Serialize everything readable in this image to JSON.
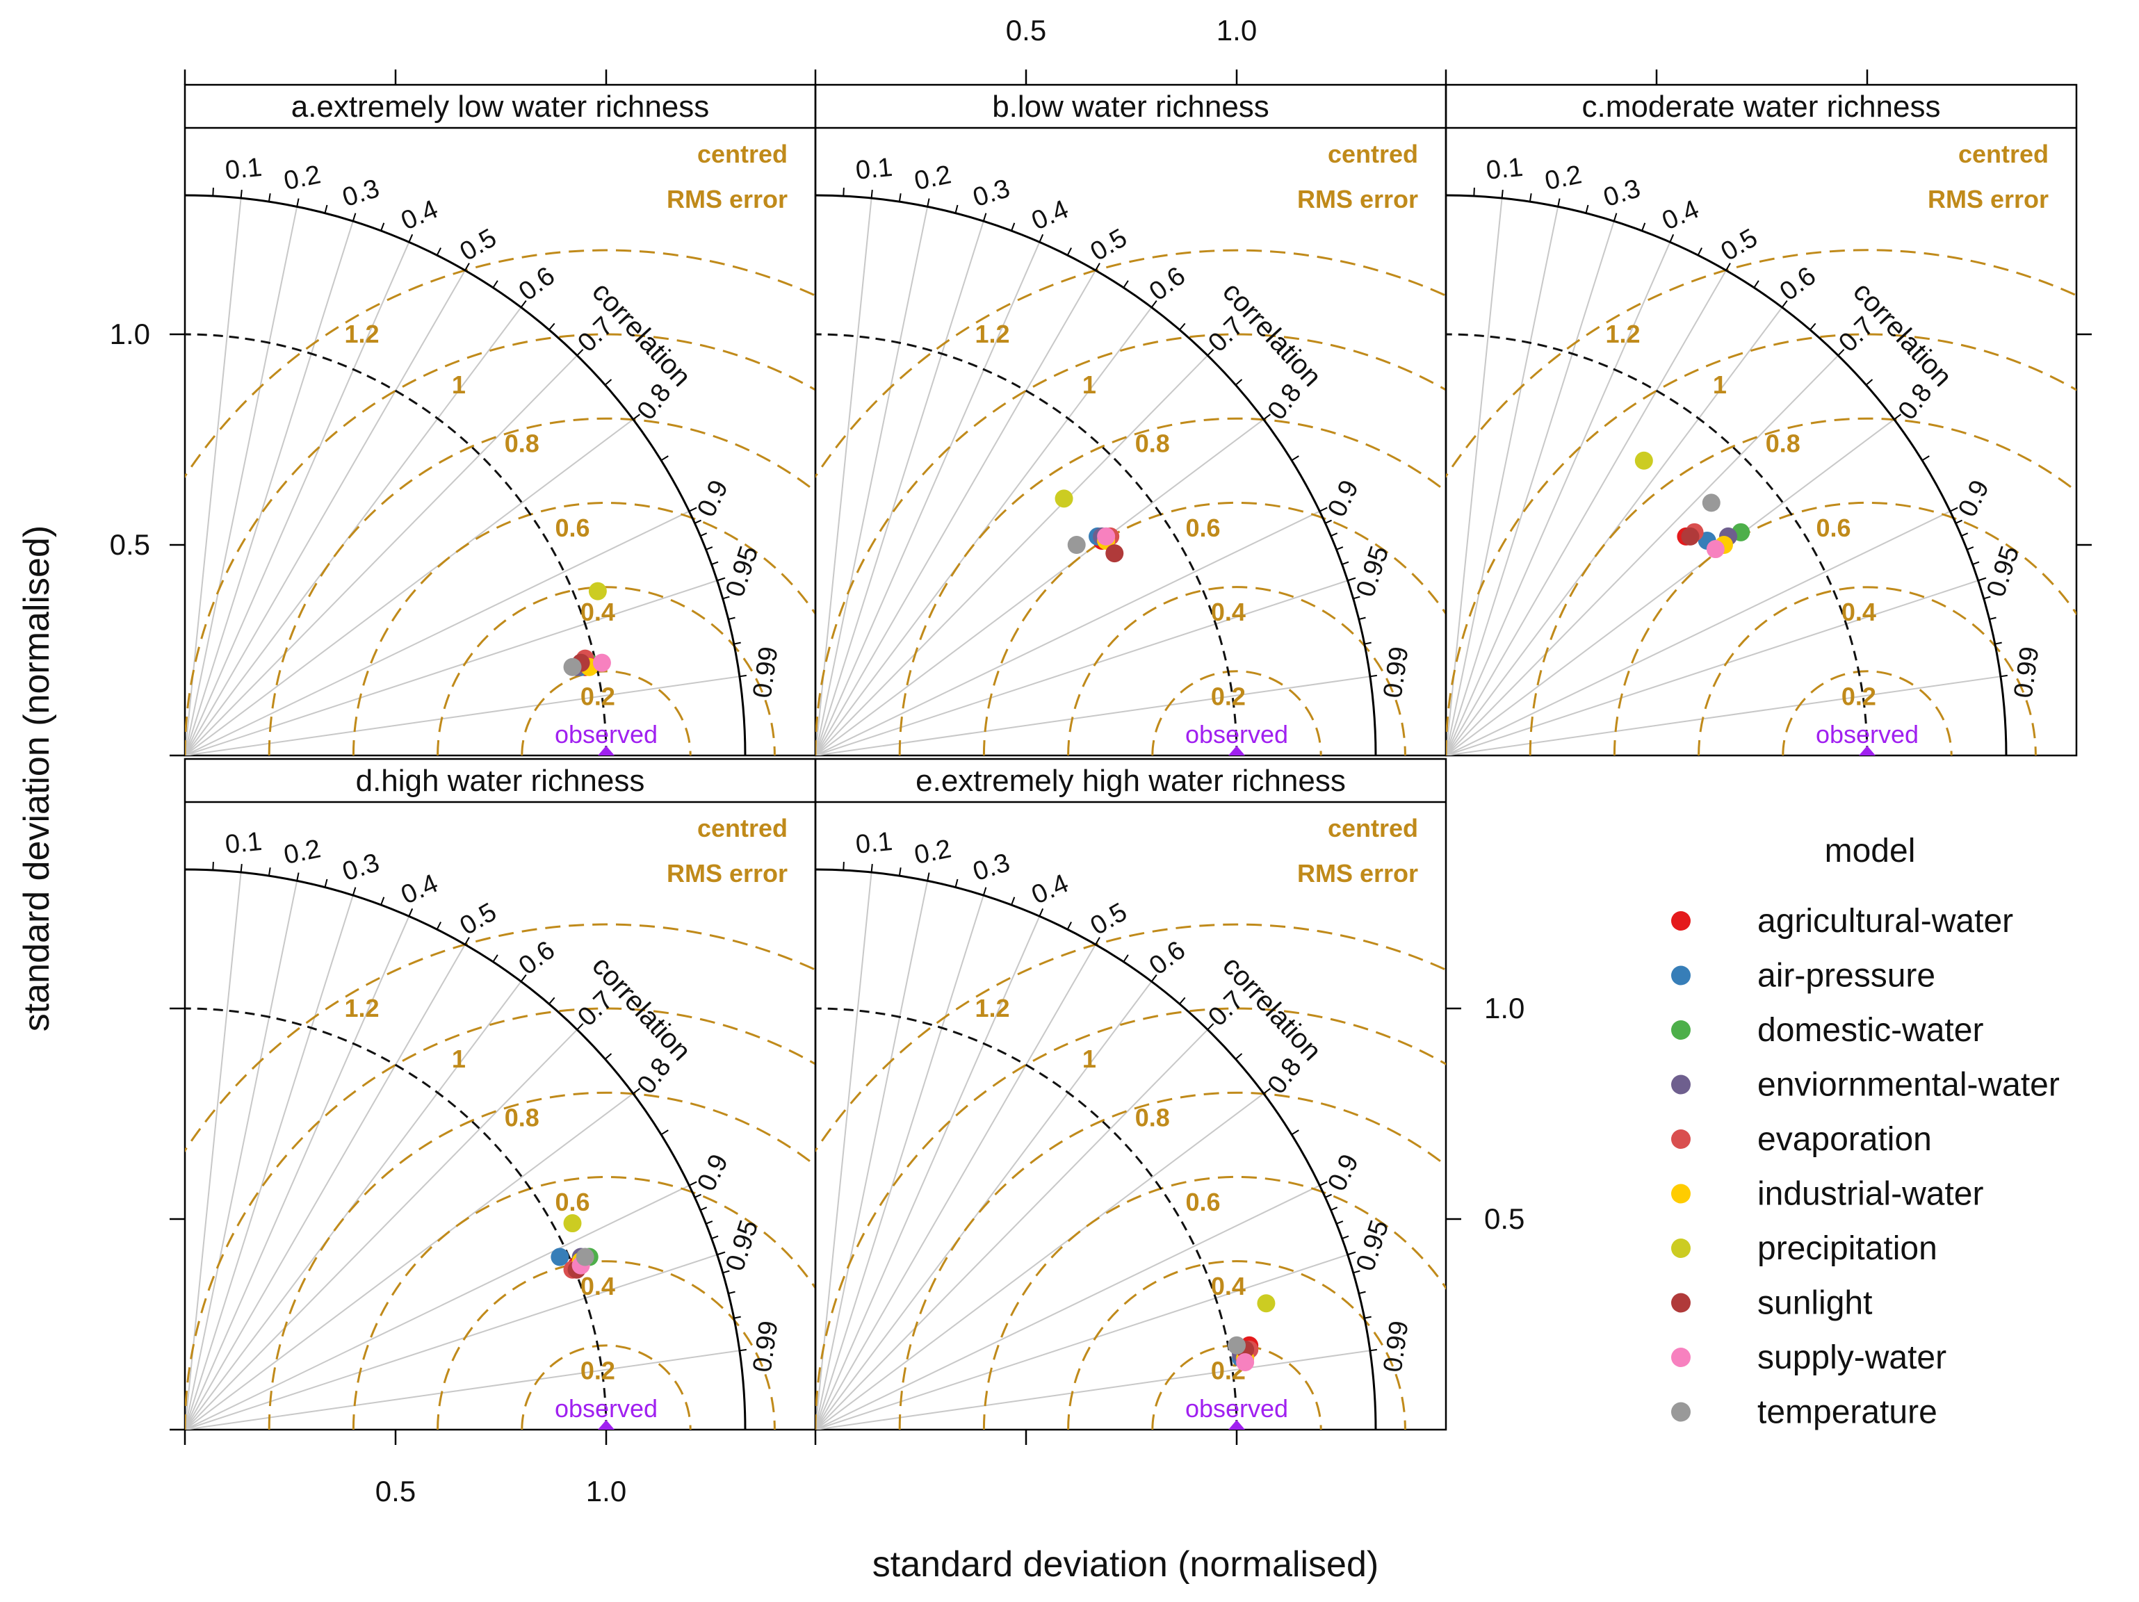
{
  "chart_data": {
    "type": "scatter",
    "subtype": "taylor-diagram",
    "xlabel": "standard deviation (normalised)",
    "ylabel": "standard deviation (normalised)",
    "std_range": [
      0,
      1.33
    ],
    "std_ticks": [
      0.5,
      1.0
    ],
    "std_tick_labels": [
      "0.5",
      "1.0"
    ],
    "reference_std": 1.0,
    "correlation_ticks": [
      0.1,
      0.2,
      0.3,
      0.4,
      0.5,
      0.6,
      0.7,
      0.8,
      0.9,
      0.95,
      0.99
    ],
    "correlation_tick_labels": [
      "0.1",
      "0.2",
      "0.3",
      "0.4",
      "0.5",
      "0.6",
      "0.7",
      "0.8",
      "0.9",
      "0.95",
      "0.99"
    ],
    "correlation_label": "correlation",
    "rms_contours": [
      0.2,
      0.4,
      0.6,
      0.8,
      1.0,
      1.2
    ],
    "rms_labels": [
      "0.2",
      "0.4",
      "0.6",
      "0.8",
      "1",
      "1.2"
    ],
    "rms_legend": [
      "centred",
      "RMS error"
    ],
    "observed_label": "observed",
    "legend_title": "model",
    "models": [
      "agricultural-water",
      "air-pressure",
      "domestic-water",
      "enviornmental-water",
      "evaporation",
      "industrial-water",
      "precipitation",
      "sunlight",
      "supply-water",
      "temperature"
    ],
    "colors": {
      "agricultural-water": "#e41a1c",
      "air-pressure": "#377eb8",
      "domestic-water": "#4daf4a",
      "enviornmental-water": "#6e5f8e",
      "evaporation": "#d94f4f",
      "industrial-water": "#ffcc00",
      "precipitation": "#cccc22",
      "sunlight": "#b03a3a",
      "supply-water": "#f781bf",
      "temperature": "#999999",
      "observed": "#a020f0",
      "rms": "#c08a1a"
    },
    "panels": [
      {
        "title": "a.extremely low water richness",
        "points": [
          {
            "model": "agricultural-water",
            "x": 0.95,
            "y": 0.21
          },
          {
            "model": "air-pressure",
            "x": 0.94,
            "y": 0.21
          },
          {
            "model": "domestic-water",
            "x": 0.96,
            "y": 0.22
          },
          {
            "model": "enviornmental-water",
            "x": 0.93,
            "y": 0.21
          },
          {
            "model": "evaporation",
            "x": 0.95,
            "y": 0.23
          },
          {
            "model": "industrial-water",
            "x": 0.96,
            "y": 0.21
          },
          {
            "model": "precipitation",
            "x": 0.98,
            "y": 0.39
          },
          {
            "model": "sunlight",
            "x": 0.94,
            "y": 0.22
          },
          {
            "model": "supply-water",
            "x": 0.99,
            "y": 0.22
          },
          {
            "model": "temperature",
            "x": 0.92,
            "y": 0.21
          }
        ]
      },
      {
        "title": "b.low water richness",
        "points": [
          {
            "model": "agricultural-water",
            "x": 0.68,
            "y": 0.51
          },
          {
            "model": "air-pressure",
            "x": 0.67,
            "y": 0.52
          },
          {
            "model": "domestic-water",
            "x": 0.69,
            "y": 0.52
          },
          {
            "model": "enviornmental-water",
            "x": 0.68,
            "y": 0.52
          },
          {
            "model": "evaporation",
            "x": 0.7,
            "y": 0.52
          },
          {
            "model": "industrial-water",
            "x": 0.69,
            "y": 0.51
          },
          {
            "model": "precipitation",
            "x": 0.59,
            "y": 0.61
          },
          {
            "model": "sunlight",
            "x": 0.71,
            "y": 0.48
          },
          {
            "model": "supply-water",
            "x": 0.69,
            "y": 0.52
          },
          {
            "model": "temperature",
            "x": 0.62,
            "y": 0.5
          }
        ]
      },
      {
        "title": "c.moderate water richness",
        "points": [
          {
            "model": "agricultural-water",
            "x": 0.57,
            "y": 0.52
          },
          {
            "model": "air-pressure",
            "x": 0.62,
            "y": 0.51
          },
          {
            "model": "domestic-water",
            "x": 0.7,
            "y": 0.53
          },
          {
            "model": "enviornmental-water",
            "x": 0.67,
            "y": 0.52
          },
          {
            "model": "evaporation",
            "x": 0.59,
            "y": 0.53
          },
          {
            "model": "industrial-water",
            "x": 0.66,
            "y": 0.5
          },
          {
            "model": "precipitation",
            "x": 0.47,
            "y": 0.7
          },
          {
            "model": "sunlight",
            "x": 0.58,
            "y": 0.52
          },
          {
            "model": "supply-water",
            "x": 0.64,
            "y": 0.49
          },
          {
            "model": "temperature",
            "x": 0.63,
            "y": 0.6
          }
        ]
      },
      {
        "title": "d.high water richness",
        "points": [
          {
            "model": "agricultural-water",
            "x": 0.93,
            "y": 0.39
          },
          {
            "model": "air-pressure",
            "x": 0.89,
            "y": 0.41
          },
          {
            "model": "domestic-water",
            "x": 0.96,
            "y": 0.41
          },
          {
            "model": "enviornmental-water",
            "x": 0.94,
            "y": 0.41
          },
          {
            "model": "evaporation",
            "x": 0.92,
            "y": 0.38
          },
          {
            "model": "industrial-water",
            "x": 0.94,
            "y": 0.4
          },
          {
            "model": "precipitation",
            "x": 0.92,
            "y": 0.49
          },
          {
            "model": "sunlight",
            "x": 0.93,
            "y": 0.38
          },
          {
            "model": "supply-water",
            "x": 0.94,
            "y": 0.39
          },
          {
            "model": "temperature",
            "x": 0.95,
            "y": 0.41
          }
        ]
      },
      {
        "title": "e.extremely high water richness",
        "points": [
          {
            "model": "agricultural-water",
            "x": 1.03,
            "y": 0.2
          },
          {
            "model": "air-pressure",
            "x": 1.01,
            "y": 0.17
          },
          {
            "model": "domestic-water",
            "x": 1.02,
            "y": 0.17
          },
          {
            "model": "enviornmental-water",
            "x": 1.01,
            "y": 0.18
          },
          {
            "model": "evaporation",
            "x": 1.03,
            "y": 0.19
          },
          {
            "model": "industrial-water",
            "x": 1.02,
            "y": 0.17
          },
          {
            "model": "precipitation",
            "x": 1.07,
            "y": 0.3
          },
          {
            "model": "sunlight",
            "x": 1.02,
            "y": 0.19
          },
          {
            "model": "supply-water",
            "x": 1.02,
            "y": 0.16
          },
          {
            "model": "temperature",
            "x": 1.0,
            "y": 0.2
          }
        ]
      }
    ]
  }
}
